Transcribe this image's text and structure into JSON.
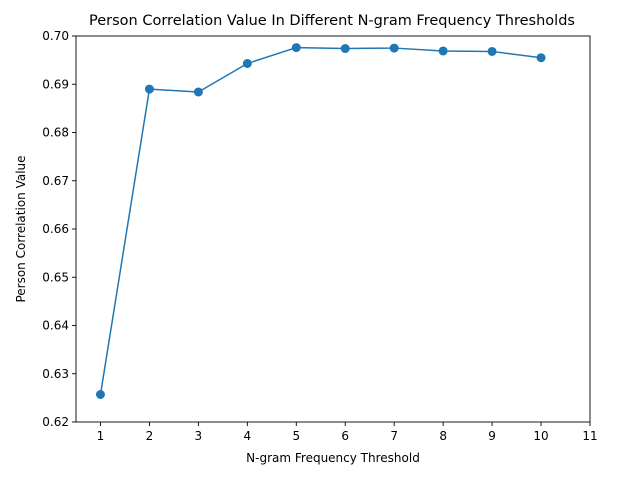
{
  "chart_data": {
    "type": "line",
    "title": "Person Correlation Value In Different N-gram Frequency Thresholds",
    "xlabel": "N-gram Frequency Threshold",
    "ylabel": "Person Correlation Value",
    "xlim": [
      0.5,
      11
    ],
    "ylim": [
      0.62,
      0.7
    ],
    "xticks": [
      1,
      2,
      3,
      4,
      5,
      6,
      7,
      8,
      9,
      10,
      11
    ],
    "yticks": [
      0.62,
      0.63,
      0.64,
      0.65,
      0.66,
      0.67,
      0.68,
      0.69,
      0.7
    ],
    "ytick_labels": [
      "0.62",
      "0.63",
      "0.64",
      "0.65",
      "0.66",
      "0.67",
      "0.68",
      "0.69",
      "0.70"
    ],
    "grid": false,
    "series": [
      {
        "color": "#1f77b4",
        "marker": "circle",
        "x": [
          1,
          2,
          3,
          4,
          5,
          6,
          7,
          8,
          9,
          10
        ],
        "y": [
          0.6257,
          0.689,
          0.6884,
          0.6943,
          0.6976,
          0.6974,
          0.6975,
          0.6969,
          0.6968,
          0.6955
        ]
      }
    ]
  }
}
